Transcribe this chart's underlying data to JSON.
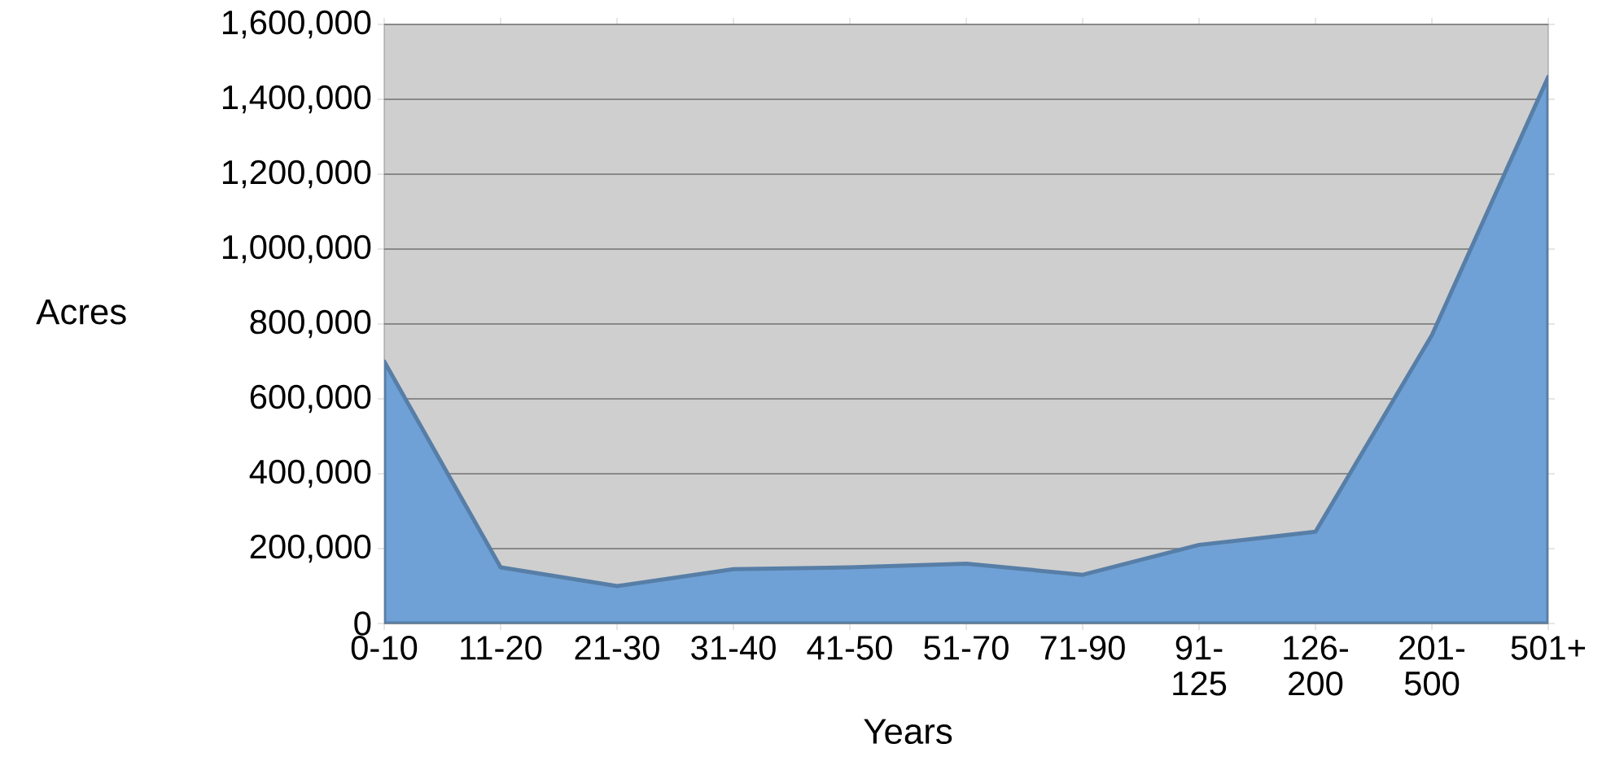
{
  "chart_data": {
    "type": "area",
    "xlabel": "Years",
    "ylabel": "Acres",
    "categories": [
      "0-10",
      "11-20",
      "21-30",
      "31-40",
      "41-50",
      "51-70",
      "71-90",
      "91-125",
      "126-200",
      "201-500",
      "501+"
    ],
    "values": [
      700000,
      150000,
      100000,
      145000,
      150000,
      160000,
      130000,
      210000,
      245000,
      770000,
      1460000
    ],
    "color": "#6fa1d6",
    "ylim": [
      0,
      1600000
    ],
    "yticks": [
      {
        "value": 0,
        "label": "0"
      },
      {
        "value": 200000,
        "label": "200,000"
      },
      {
        "value": 400000,
        "label": "400,000"
      },
      {
        "value": 600000,
        "label": "600,000"
      },
      {
        "value": 800000,
        "label": "800,000"
      },
      {
        "value": 1000000,
        "label": "1,000,000"
      },
      {
        "value": 1200000,
        "label": "1,200,000"
      },
      {
        "value": 1400000,
        "label": "1,400,000"
      },
      {
        "value": 1600000,
        "label": "1,600,000"
      }
    ],
    "grid": "y"
  }
}
